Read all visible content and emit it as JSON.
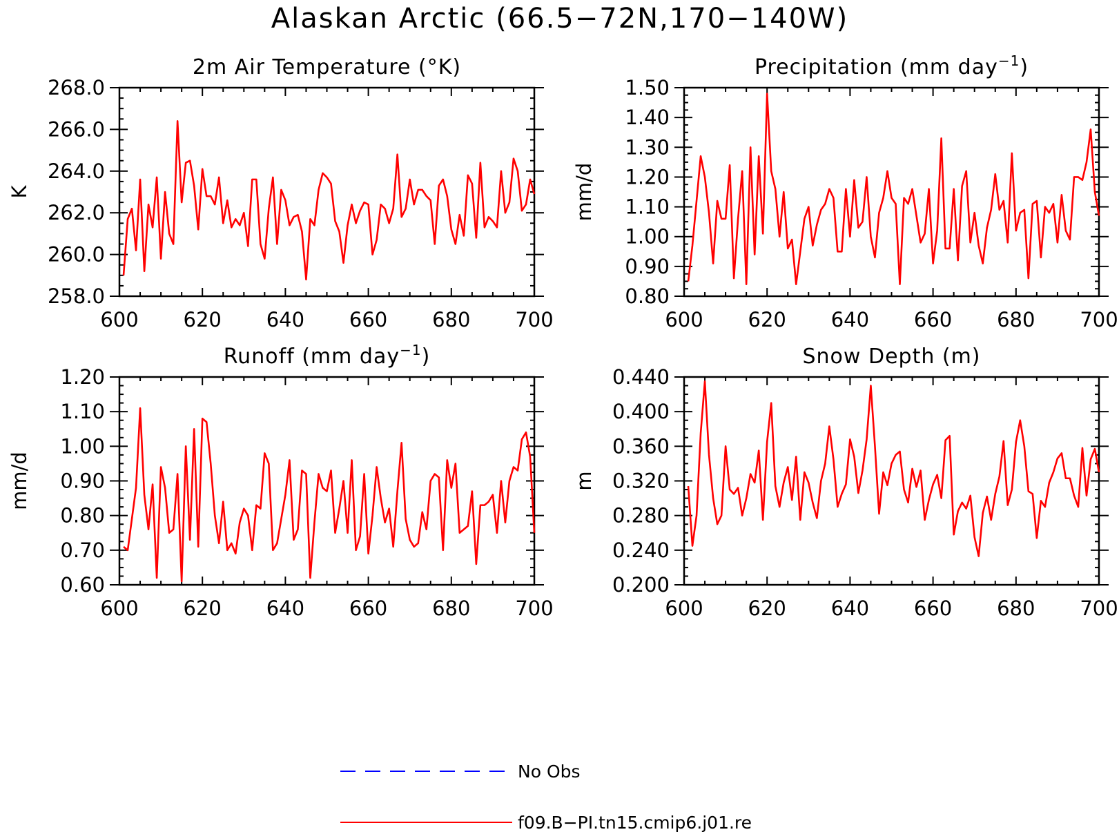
{
  "title": "Alaskan Arctic (66.5−72N,170−140W)",
  "colors": {
    "model": "#ff0000",
    "obs": "#0000ff"
  },
  "legend": {
    "entries": [
      {
        "label": "No Obs",
        "color": "#0000ff",
        "style": "dashed"
      },
      {
        "label": "f09.B−PI.tn15.cmip6.j01.re",
        "color": "#ff0000",
        "style": "solid"
      }
    ]
  },
  "chart_data": [
    {
      "type": "line",
      "title": "2m Air Temperature (°K)",
      "title_sup": "",
      "title_end": "",
      "ylabel": "K",
      "xlim": [
        600,
        700
      ],
      "ylim": [
        258.0,
        268.0
      ],
      "xticks": [
        600,
        620,
        640,
        660,
        680,
        700
      ],
      "yticks": [
        258.0,
        260.0,
        262.0,
        264.0,
        266.0,
        268.0
      ],
      "ytick_decimals": 1,
      "y_minor_step": 0.5,
      "series": [
        {
          "name": "f09.B−PI.tn15.cmip6.j01.re",
          "color": "#ff0000",
          "x_start": 601,
          "x_step": 1,
          "values": [
            259.0,
            261.7,
            262.2,
            260.2,
            263.6,
            259.2,
            262.4,
            261.3,
            263.7,
            259.8,
            263.0,
            261.0,
            260.5,
            266.4,
            262.5,
            264.4,
            264.5,
            263.3,
            261.2,
            264.1,
            262.8,
            262.8,
            262.4,
            263.7,
            261.5,
            262.6,
            261.3,
            261.7,
            261.4,
            262.0,
            260.4,
            263.6,
            263.6,
            260.5,
            259.8,
            262.2,
            263.7,
            260.5,
            263.1,
            262.6,
            261.4,
            261.8,
            261.9,
            261.1,
            258.8,
            261.7,
            261.4,
            263.1,
            263.9,
            263.7,
            263.4,
            261.6,
            261.1,
            259.6,
            261.4,
            262.4,
            261.5,
            262.1,
            262.5,
            262.4,
            260.0,
            260.7,
            262.4,
            262.2,
            261.5,
            262.2,
            264.8,
            261.8,
            262.2,
            263.6,
            262.4,
            263.1,
            263.1,
            262.8,
            262.6,
            260.5,
            263.3,
            263.6,
            262.8,
            261.2,
            260.5,
            261.9,
            260.9,
            263.8,
            263.4,
            260.8,
            264.4,
            261.3,
            261.8,
            261.6,
            261.3,
            264.0,
            262.0,
            262.5,
            264.6,
            264.0,
            262.1,
            262.4,
            263.6,
            262.9
          ]
        }
      ]
    },
    {
      "type": "line",
      "title": "Precipitation (mm day",
      "title_sup": "−1",
      "title_end": ")",
      "ylabel": "mm/d",
      "xlim": [
        600,
        700
      ],
      "ylim": [
        0.8,
        1.5
      ],
      "xticks": [
        600,
        620,
        640,
        660,
        680,
        700
      ],
      "yticks": [
        0.8,
        0.9,
        1.0,
        1.1,
        1.2,
        1.3,
        1.4,
        1.5
      ],
      "ytick_decimals": 2,
      "y_minor_step": 0.025,
      "series": [
        {
          "name": "f09.B−PI.tn15.cmip6.j01.re",
          "color": "#ff0000",
          "x_start": 601,
          "x_step": 1,
          "values": [
            0.85,
            0.97,
            1.12,
            1.27,
            1.2,
            1.08,
            0.91,
            1.12,
            1.06,
            1.06,
            1.24,
            0.86,
            1.06,
            1.22,
            0.84,
            1.3,
            0.94,
            1.27,
            1.01,
            1.48,
            1.22,
            1.16,
            1.0,
            1.15,
            0.96,
            0.99,
            0.84,
            0.95,
            1.06,
            1.1,
            0.97,
            1.04,
            1.09,
            1.11,
            1.16,
            1.13,
            0.95,
            0.95,
            1.16,
            1.0,
            1.19,
            1.03,
            1.05,
            1.2,
            1.0,
            0.93,
            1.08,
            1.13,
            1.22,
            1.13,
            1.11,
            0.84,
            1.13,
            1.11,
            1.16,
            1.07,
            0.98,
            1.01,
            1.16,
            0.91,
            1.02,
            1.33,
            0.96,
            0.96,
            1.16,
            0.92,
            1.17,
            1.22,
            0.98,
            1.08,
            0.97,
            0.91,
            1.03,
            1.09,
            1.21,
            1.09,
            1.12,
            0.98,
            1.28,
            1.02,
            1.08,
            1.09,
            0.86,
            1.11,
            1.12,
            0.93,
            1.1,
            1.08,
            1.11,
            0.98,
            1.14,
            1.02,
            0.99,
            1.2,
            1.2,
            1.19,
            1.25,
            1.36,
            1.15,
            1.07
          ]
        }
      ]
    },
    {
      "type": "line",
      "title": "Runoff (mm day",
      "title_sup": "−1",
      "title_end": ")",
      "ylabel": "mm/d",
      "xlim": [
        600,
        700
      ],
      "ylim": [
        0.6,
        1.2
      ],
      "xticks": [
        600,
        620,
        640,
        660,
        680,
        700
      ],
      "yticks": [
        0.6,
        0.7,
        0.8,
        0.9,
        1.0,
        1.1,
        1.2
      ],
      "ytick_decimals": 2,
      "y_minor_step": 0.025,
      "series": [
        {
          "name": "f09.B−PI.tn15.cmip6.j01.re",
          "color": "#ff0000",
          "x_start": 601,
          "x_step": 1,
          "values": [
            0.71,
            0.7,
            0.79,
            0.88,
            1.11,
            0.86,
            0.76,
            0.89,
            0.62,
            0.94,
            0.88,
            0.75,
            0.76,
            0.92,
            0.61,
            1.0,
            0.73,
            1.05,
            0.71,
            1.08,
            1.07,
            0.95,
            0.8,
            0.72,
            0.84,
            0.7,
            0.72,
            0.69,
            0.78,
            0.82,
            0.8,
            0.7,
            0.83,
            0.82,
            0.98,
            0.95,
            0.7,
            0.72,
            0.79,
            0.86,
            0.96,
            0.73,
            0.76,
            0.93,
            0.92,
            0.62,
            0.78,
            0.92,
            0.88,
            0.87,
            0.93,
            0.75,
            0.82,
            0.9,
            0.75,
            0.96,
            0.7,
            0.74,
            0.92,
            0.69,
            0.8,
            0.94,
            0.85,
            0.78,
            0.82,
            0.71,
            0.87,
            1.01,
            0.79,
            0.73,
            0.71,
            0.72,
            0.81,
            0.76,
            0.9,
            0.92,
            0.91,
            0.7,
            0.96,
            0.88,
            0.95,
            0.75,
            0.76,
            0.77,
            0.87,
            0.66,
            0.83,
            0.83,
            0.84,
            0.86,
            0.75,
            0.9,
            0.78,
            0.9,
            0.94,
            0.93,
            1.02,
            1.04,
            0.97,
            0.75
          ]
        }
      ]
    },
    {
      "type": "line",
      "title": "Snow Depth (m)",
      "title_sup": "",
      "title_end": "",
      "ylabel": "m",
      "xlim": [
        600,
        700
      ],
      "ylim": [
        0.2,
        0.44
      ],
      "xticks": [
        600,
        620,
        640,
        660,
        680,
        700
      ],
      "yticks": [
        0.2,
        0.24,
        0.28,
        0.32,
        0.36,
        0.4,
        0.44
      ],
      "ytick_decimals": 3,
      "y_minor_step": 0.01,
      "series": [
        {
          "name": "f09.B−PI.tn15.cmip6.j01.re",
          "color": "#ff0000",
          "x_start": 601,
          "x_step": 1,
          "values": [
            0.314,
            0.245,
            0.28,
            0.375,
            0.435,
            0.35,
            0.3,
            0.27,
            0.28,
            0.36,
            0.31,
            0.305,
            0.312,
            0.28,
            0.3,
            0.328,
            0.318,
            0.355,
            0.275,
            0.365,
            0.41,
            0.314,
            0.29,
            0.318,
            0.336,
            0.298,
            0.348,
            0.275,
            0.33,
            0.318,
            0.295,
            0.277,
            0.32,
            0.34,
            0.383,
            0.345,
            0.29,
            0.305,
            0.316,
            0.368,
            0.348,
            0.306,
            0.332,
            0.368,
            0.43,
            0.36,
            0.282,
            0.33,
            0.315,
            0.34,
            0.35,
            0.354,
            0.31,
            0.295,
            0.334,
            0.313,
            0.332,
            0.275,
            0.298,
            0.316,
            0.327,
            0.3,
            0.367,
            0.372,
            0.258,
            0.285,
            0.295,
            0.288,
            0.303,
            0.255,
            0.233,
            0.283,
            0.302,
            0.275,
            0.305,
            0.325,
            0.366,
            0.292,
            0.31,
            0.365,
            0.39,
            0.36,
            0.308,
            0.305,
            0.254,
            0.297,
            0.29,
            0.318,
            0.33,
            0.346,
            0.352,
            0.323,
            0.323,
            0.303,
            0.29,
            0.358,
            0.303,
            0.345,
            0.357,
            0.33
          ]
        }
      ]
    }
  ]
}
